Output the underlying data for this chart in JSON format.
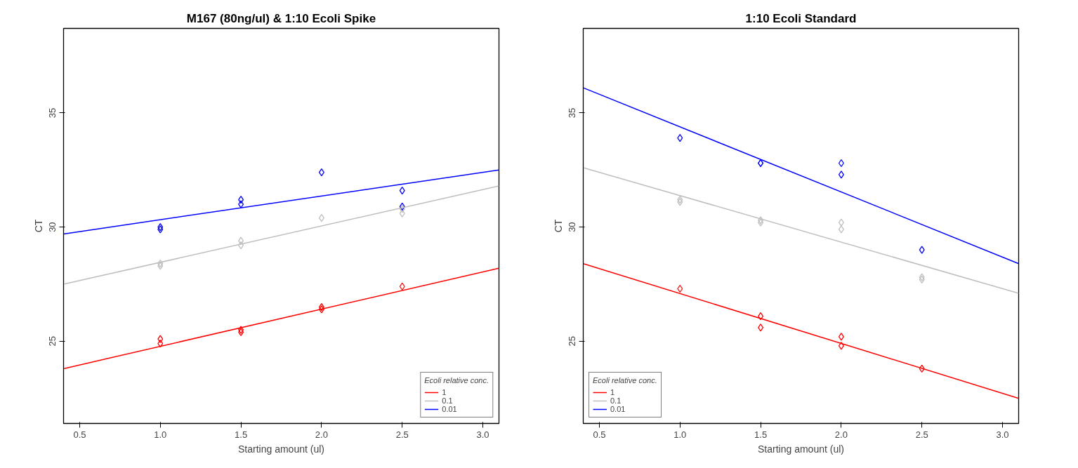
{
  "chart_data": [
    {
      "type": "scatter",
      "title": "M167 (80ng/ul) & 1:10 Ecoli Spike",
      "xlabel": "Starting amount (ul)",
      "ylabel": "CT",
      "legend_title": "Ecoli relative conc.",
      "legend": "bottom right",
      "grid": false,
      "marker": "diamond",
      "xlim": [
        0.4,
        3.1
      ],
      "ylim": [
        21.4,
        38.7
      ],
      "xticks": [
        {
          "value": 0.5,
          "label": "0.5"
        },
        {
          "value": 1,
          "label": "1.0"
        },
        {
          "value": 1.5,
          "label": "1.5"
        },
        {
          "value": 2,
          "label": "2.0"
        },
        {
          "value": 2.5,
          "label": "2.5"
        },
        {
          "value": 3,
          "label": "3.0"
        }
      ],
      "yticks": [
        25,
        30,
        35
      ],
      "series": [
        {
          "color": "#ff0000",
          "x": [
            1,
            1,
            1.5,
            1.5,
            2,
            2,
            2.5
          ],
          "values": [
            25.1,
            24.9,
            25.5,
            25.4,
            26.5,
            26.4,
            27.4
          ]
        },
        {
          "color": "#bebebe",
          "x": [
            1,
            1,
            1.5,
            1.5,
            2,
            2.5,
            2.5
          ],
          "values": [
            28.4,
            28.3,
            29.4,
            29.2,
            30.4,
            30.8,
            30.6
          ]
        },
        {
          "color": "#0000ff",
          "x": [
            1,
            1,
            1.5,
            1.5,
            2,
            2.5,
            2.5
          ],
          "values": [
            30.0,
            29.9,
            31.2,
            31.0,
            32.4,
            31.6,
            30.9
          ]
        },
        {
          "type": "line",
          "marker": "none",
          "name": "1",
          "color": "#ff0000",
          "x": [
            0.4,
            3.1
          ],
          "values": [
            23.8,
            28.2
          ]
        },
        {
          "type": "line",
          "marker": "none",
          "name": "0.1",
          "color": "#bebebe",
          "x": [
            0.4,
            3.1
          ],
          "values": [
            27.5,
            31.8
          ]
        },
        {
          "type": "line",
          "marker": "none",
          "name": "0.01",
          "color": "#0000ff",
          "x": [
            0.4,
            3.1
          ],
          "values": [
            29.7,
            32.5
          ]
        }
      ]
    },
    {
      "type": "scatter",
      "title": "1:10 Ecoli Standard",
      "xlabel": "Starting amount (ul)",
      "ylabel": "CT",
      "legend_title": "Ecoli relative conc.",
      "legend": "bottom left",
      "grid": false,
      "marker": "diamond",
      "xlim": [
        0.4,
        3.1
      ],
      "ylim": [
        21.4,
        38.7
      ],
      "xticks": [
        {
          "value": 0.5,
          "label": "0.5"
        },
        {
          "value": 1,
          "label": "1.0"
        },
        {
          "value": 1.5,
          "label": "1.5"
        },
        {
          "value": 2,
          "label": "2.0"
        },
        {
          "value": 2.5,
          "label": "2.5"
        },
        {
          "value": 3,
          "label": "3.0"
        }
      ],
      "yticks": [
        25,
        30,
        35
      ],
      "series": [
        {
          "color": "#ff0000",
          "x": [
            1,
            1.5,
            1.5,
            2,
            2,
            2.5
          ],
          "values": [
            27.3,
            26.1,
            25.6,
            25.2,
            24.8,
            23.8
          ]
        },
        {
          "color": "#bebebe",
          "x": [
            1,
            1,
            1.5,
            1.5,
            2,
            2,
            2.5,
            2.5
          ],
          "values": [
            31.2,
            31.1,
            30.3,
            30.2,
            30.2,
            29.9,
            27.8,
            27.7
          ]
        },
        {
          "color": "#0000ff",
          "x": [
            1,
            1.5,
            1.5,
            2,
            2,
            2.5
          ],
          "values": [
            33.9,
            32.8,
            32.8,
            32.8,
            32.3,
            29.0
          ]
        },
        {
          "type": "line",
          "marker": "none",
          "name": "1",
          "color": "#ff0000",
          "x": [
            0.4,
            3.1
          ],
          "values": [
            28.4,
            22.5
          ]
        },
        {
          "type": "line",
          "marker": "none",
          "name": "0.1",
          "color": "#bebebe",
          "x": [
            0.4,
            3.1
          ],
          "values": [
            32.6,
            27.1
          ]
        },
        {
          "type": "line",
          "marker": "none",
          "name": "0.01",
          "color": "#0000ff",
          "x": [
            0.4,
            3.1
          ],
          "values": [
            36.1,
            28.4
          ]
        }
      ]
    }
  ]
}
